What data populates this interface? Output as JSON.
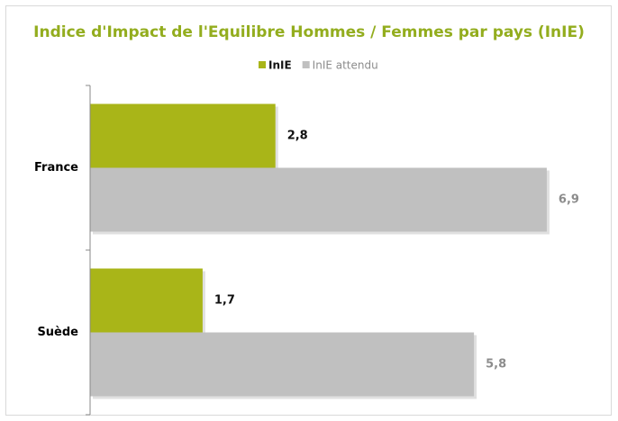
{
  "chart_data": {
    "type": "barh",
    "title": "Indice d'Impact de l'Equilibre Hommes / Femmes  par pays (InIE)",
    "categories": [
      "France",
      "Suède"
    ],
    "series": [
      {
        "name": "InIE",
        "color": "#a9b518",
        "values": [
          2.8,
          1.7
        ],
        "value_labels": [
          "2,8",
          "1,7"
        ]
      },
      {
        "name": "InIE attendu",
        "color": "#c0c0c0",
        "values": [
          6.9,
          5.8
        ],
        "value_labels": [
          "6,9",
          "5,8"
        ]
      }
    ],
    "xlim": [
      0,
      7.5
    ],
    "legend": "top"
  }
}
